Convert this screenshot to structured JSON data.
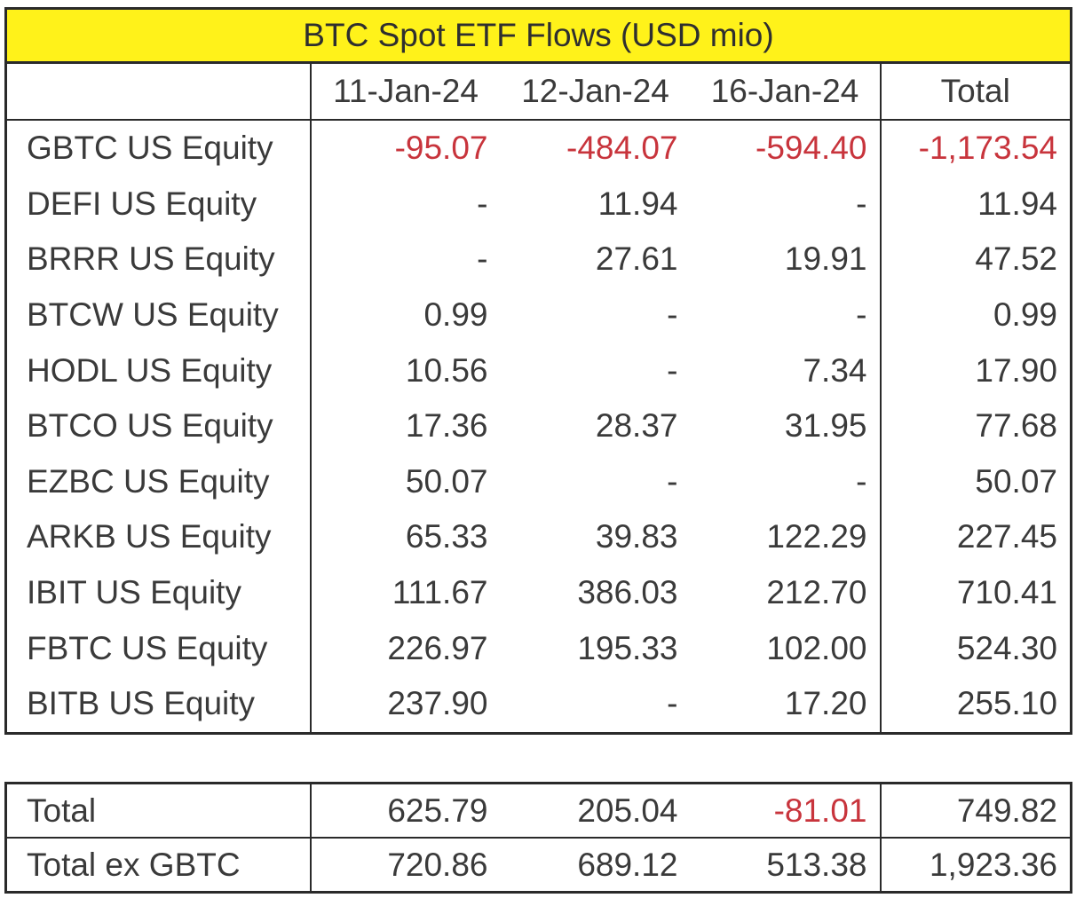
{
  "chart_data": {
    "type": "table",
    "title": "BTC Spot ETF Flows (USD mio)",
    "columns": [
      "",
      "11-Jan-24",
      "12-Jan-24",
      "16-Jan-24",
      "Total"
    ],
    "rows": [
      [
        "GBTC US Equity",
        "-95.07",
        "-484.07",
        "-594.40",
        "-1,173.54"
      ],
      [
        "DEFI US Equity",
        "-",
        "11.94",
        "-",
        "11.94"
      ],
      [
        "BRRR US Equity",
        "-",
        "27.61",
        "19.91",
        "47.52"
      ],
      [
        "BTCW US Equity",
        "0.99",
        "-",
        "-",
        "0.99"
      ],
      [
        "HODL US Equity",
        "10.56",
        "-",
        "7.34",
        "17.90"
      ],
      [
        "BTCO US Equity",
        "17.36",
        "28.37",
        "31.95",
        "77.68"
      ],
      [
        "EZBC US Equity",
        "50.07",
        "-",
        "-",
        "50.07"
      ],
      [
        "ARKB US Equity",
        "65.33",
        "39.83",
        "122.29",
        "227.45"
      ],
      [
        "IBIT US Equity",
        "111.67",
        "386.03",
        "212.70",
        "710.41"
      ],
      [
        "FBTC US Equity",
        "226.97",
        "195.33",
        "102.00",
        "524.30"
      ],
      [
        "BITB US Equity",
        "237.90",
        "-",
        "17.20",
        "255.10"
      ]
    ],
    "summary_rows": [
      [
        "Total",
        "625.79",
        "205.04",
        "-81.01",
        "749.82"
      ],
      [
        "Total ex GBTC",
        "720.86",
        "689.12",
        "513.38",
        "1,923.36"
      ]
    ],
    "colors": {
      "title_background": "#fff21a",
      "negative_text": "#c8343c",
      "text": "#3a3a3a",
      "border": "#2a2a2a"
    }
  }
}
